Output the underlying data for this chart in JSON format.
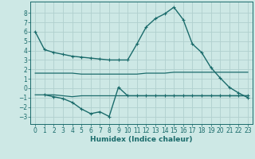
{
  "bg_color": "#cde8e5",
  "grid_color": "#b0d0ce",
  "line_color": "#1a6b6b",
  "xlabel": "Humidex (Indice chaleur)",
  "xlim": [
    -0.5,
    23.5
  ],
  "ylim": [
    -3.8,
    9.2
  ],
  "yticks": [
    -3,
    -2,
    -1,
    0,
    1,
    2,
    3,
    4,
    5,
    6,
    7,
    8
  ],
  "xticks": [
    0,
    1,
    2,
    3,
    4,
    5,
    6,
    7,
    8,
    9,
    10,
    11,
    12,
    13,
    14,
    15,
    16,
    17,
    18,
    19,
    20,
    21,
    22,
    23
  ],
  "line1_x": [
    0,
    1,
    2,
    3,
    4,
    5,
    6,
    7,
    8,
    9,
    10,
    11,
    12,
    13,
    14,
    15,
    16,
    17,
    18,
    19,
    20,
    21,
    22,
    23
  ],
  "line1_y": [
    6.0,
    4.1,
    3.8,
    3.6,
    3.4,
    3.3,
    3.2,
    3.1,
    3.0,
    3.0,
    3.0,
    4.7,
    6.5,
    7.4,
    7.9,
    8.6,
    7.3,
    4.7,
    3.8,
    2.2,
    1.1,
    0.1,
    -0.5,
    -1.0
  ],
  "line2_x": [
    0,
    1,
    2,
    3,
    4,
    5,
    6,
    7,
    8,
    9,
    10,
    11,
    12,
    13,
    14,
    15,
    16,
    17,
    18,
    19,
    20,
    21,
    22,
    23
  ],
  "line2_y": [
    1.6,
    1.6,
    1.6,
    1.6,
    1.6,
    1.5,
    1.5,
    1.5,
    1.5,
    1.5,
    1.5,
    1.5,
    1.6,
    1.6,
    1.6,
    1.7,
    1.7,
    1.7,
    1.7,
    1.7,
    1.7,
    1.7,
    1.7,
    1.7
  ],
  "line3_x": [
    0,
    1,
    2,
    3,
    4,
    5,
    6,
    7,
    8,
    9,
    10,
    11,
    12,
    13,
    14,
    15,
    16,
    17,
    18,
    19,
    20,
    21,
    22,
    23
  ],
  "line3_y": [
    -0.7,
    -0.7,
    -0.7,
    -0.8,
    -0.9,
    -0.8,
    -0.8,
    -0.8,
    -0.8,
    -0.8,
    -0.8,
    -0.8,
    -0.8,
    -0.8,
    -0.8,
    -0.8,
    -0.8,
    -0.8,
    -0.8,
    -0.8,
    -0.8,
    -0.8,
    -0.8,
    -0.8
  ],
  "line4_x": [
    1,
    2,
    3,
    4,
    5,
    6,
    7,
    8,
    9,
    10,
    11,
    12,
    13,
    14,
    15,
    16,
    17,
    18,
    19,
    20,
    21,
    22,
    23
  ],
  "line4_y": [
    -0.7,
    -0.9,
    -1.1,
    -1.5,
    -2.2,
    -2.7,
    -2.5,
    -3.0,
    0.1,
    -0.8,
    -0.8,
    -0.8,
    -0.8,
    -0.8,
    -0.8,
    -0.8,
    -0.8,
    -0.8,
    -0.8,
    -0.8,
    -0.8,
    -0.8,
    -0.8
  ],
  "tick_fontsize": 5.5,
  "xlabel_fontsize": 6.5,
  "linewidth_main": 1.0,
  "linewidth_flat": 0.9,
  "markersize": 3.5
}
